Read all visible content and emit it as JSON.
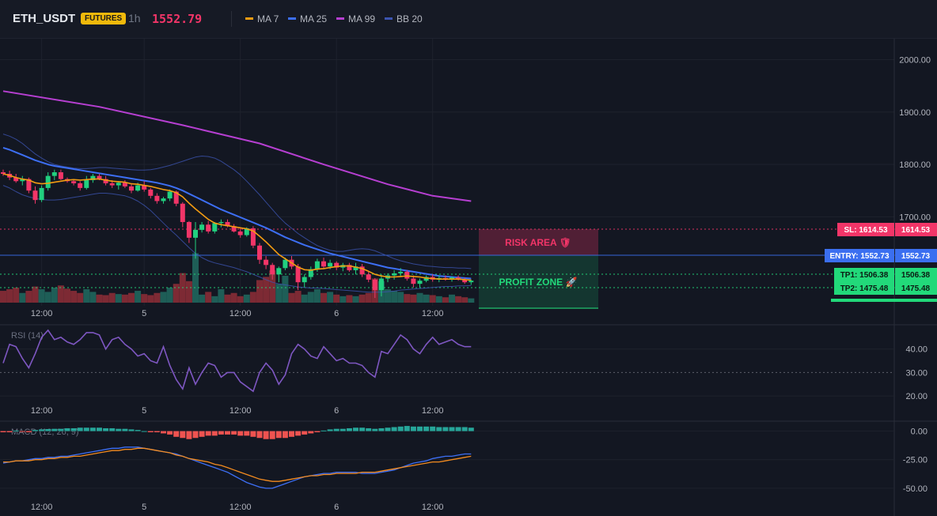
{
  "header": {
    "symbol": "ETH_USDT",
    "badge": "FUTURES",
    "timeframe": "1h",
    "last_price": "1552.79",
    "legend": [
      {
        "label": "MA 7",
        "color": "#f39c12"
      },
      {
        "label": "MA 25",
        "color": "#3d6ff5"
      },
      {
        "label": "MA 99",
        "color": "#b63fd1"
      },
      {
        "label": "BB 20",
        "color": "#3c54b0"
      }
    ]
  },
  "chart_data": [
    {
      "type": "candlestick",
      "panel": "price",
      "title": "ETH_USDT",
      "y_ticks": [
        "2000.00",
        "1900.00",
        "1800.00",
        "1700.00"
      ],
      "ylim": [
        1530,
        2040
      ],
      "x_ticks": [
        "12:00",
        "5",
        "12:00",
        "6",
        "12:00"
      ],
      "x_tick_index": [
        6,
        22,
        37,
        52,
        67
      ],
      "candles": [
        [
          1785,
          1790,
          1778,
          1782
        ],
        [
          1782,
          1788,
          1770,
          1775
        ],
        [
          1775,
          1782,
          1765,
          1768
        ],
        [
          1768,
          1778,
          1760,
          1772
        ],
        [
          1772,
          1775,
          1745,
          1750
        ],
        [
          1750,
          1758,
          1725,
          1732
        ],
        [
          1732,
          1760,
          1728,
          1755
        ],
        [
          1755,
          1785,
          1750,
          1778
        ],
        [
          1778,
          1790,
          1770,
          1785
        ],
        [
          1785,
          1790,
          1770,
          1772
        ],
        [
          1772,
          1775,
          1765,
          1768
        ],
        [
          1768,
          1772,
          1760,
          1764
        ],
        [
          1764,
          1768,
          1750,
          1755
        ],
        [
          1755,
          1778,
          1752,
          1770
        ],
        [
          1770,
          1782,
          1765,
          1778
        ],
        [
          1778,
          1782,
          1770,
          1772
        ],
        [
          1772,
          1778,
          1760,
          1764
        ],
        [
          1764,
          1770,
          1755,
          1760
        ],
        [
          1760,
          1768,
          1752,
          1765
        ],
        [
          1765,
          1770,
          1755,
          1758
        ],
        [
          1758,
          1762,
          1745,
          1750
        ],
        [
          1750,
          1765,
          1748,
          1760
        ],
        [
          1760,
          1768,
          1748,
          1752
        ],
        [
          1752,
          1755,
          1735,
          1740
        ],
        [
          1740,
          1745,
          1725,
          1730
        ],
        [
          1730,
          1738,
          1725,
          1735
        ],
        [
          1735,
          1752,
          1730,
          1748
        ],
        [
          1748,
          1750,
          1720,
          1725
        ],
        [
          1725,
          1728,
          1680,
          1690
        ],
        [
          1690,
          1692,
          1650,
          1660
        ],
        [
          1660,
          1690,
          1620,
          1675
        ],
        [
          1675,
          1690,
          1670,
          1685
        ],
        [
          1685,
          1692,
          1668,
          1672
        ],
        [
          1672,
          1690,
          1668,
          1688
        ],
        [
          1688,
          1695,
          1680,
          1690
        ],
        [
          1690,
          1695,
          1680,
          1682
        ],
        [
          1682,
          1686,
          1670,
          1672
        ],
        [
          1672,
          1678,
          1660,
          1665
        ],
        [
          1665,
          1680,
          1662,
          1678
        ],
        [
          1678,
          1682,
          1640,
          1645
        ],
        [
          1645,
          1650,
          1610,
          1618
        ],
        [
          1618,
          1625,
          1600,
          1608
        ],
        [
          1608,
          1612,
          1580,
          1590
        ],
        [
          1590,
          1605,
          1575,
          1602
        ],
        [
          1602,
          1622,
          1598,
          1618
        ],
        [
          1618,
          1625,
          1600,
          1605
        ],
        [
          1605,
          1610,
          1560,
          1575
        ],
        [
          1575,
          1590,
          1565,
          1585
        ],
        [
          1585,
          1605,
          1580,
          1600
        ],
        [
          1600,
          1620,
          1595,
          1615
        ],
        [
          1615,
          1622,
          1600,
          1605
        ],
        [
          1605,
          1618,
          1600,
          1612
        ],
        [
          1612,
          1615,
          1598,
          1603
        ],
        [
          1603,
          1612,
          1596,
          1608
        ],
        [
          1608,
          1612,
          1595,
          1598
        ],
        [
          1598,
          1612,
          1590,
          1605
        ],
        [
          1605,
          1610,
          1585,
          1590
        ],
        [
          1590,
          1595,
          1575,
          1580
        ],
        [
          1580,
          1583,
          1545,
          1560
        ],
        [
          1560,
          1590,
          1548,
          1582
        ],
        [
          1582,
          1592,
          1575,
          1588
        ],
        [
          1588,
          1598,
          1580,
          1592
        ],
        [
          1592,
          1602,
          1585,
          1595
        ],
        [
          1595,
          1598,
          1578,
          1582
        ],
        [
          1582,
          1588,
          1565,
          1572
        ],
        [
          1572,
          1582,
          1565,
          1578
        ],
        [
          1578,
          1588,
          1575,
          1585
        ],
        [
          1585,
          1590,
          1576,
          1580
        ],
        [
          1580,
          1588,
          1575,
          1583
        ],
        [
          1583,
          1588,
          1578,
          1581
        ],
        [
          1581,
          1586,
          1576,
          1584
        ],
        [
          1584,
          1588,
          1578,
          1580
        ],
        [
          1580,
          1584,
          1572,
          1575
        ],
        [
          1575,
          1580,
          1570,
          1578
        ]
      ],
      "volume": [
        22,
        25,
        28,
        18,
        22,
        30,
        25,
        20,
        28,
        32,
        26,
        22,
        18,
        25,
        20,
        15,
        14,
        18,
        16,
        15,
        18,
        22,
        16,
        14,
        18,
        20,
        28,
        35,
        55,
        40,
        92,
        15,
        20,
        12,
        25,
        15,
        18,
        12,
        15,
        20,
        42,
        48,
        60,
        35,
        50,
        18,
        22,
        15,
        20,
        25,
        18,
        20,
        15,
        12,
        14,
        12,
        15,
        18,
        45,
        40,
        25,
        22,
        20,
        16,
        15,
        18,
        15,
        14,
        12,
        10,
        15,
        12,
        10,
        8
      ],
      "ma7": [
        1782,
        1779,
        1775,
        1772,
        1770,
        1765,
        1763,
        1764,
        1766,
        1768,
        1770,
        1771,
        1770,
        1771,
        1772,
        1772,
        1770,
        1768,
        1767,
        1766,
        1763,
        1762,
        1760,
        1758,
        1755,
        1752,
        1750,
        1746,
        1738,
        1726,
        1715,
        1705,
        1695,
        1688,
        1685,
        1683,
        1681,
        1679,
        1677,
        1673,
        1663,
        1652,
        1640,
        1628,
        1620,
        1612,
        1604,
        1599,
        1598,
        1600,
        1601,
        1603,
        1605,
        1606,
        1606,
        1604,
        1601,
        1596,
        1590,
        1587,
        1585,
        1585,
        1586,
        1587,
        1586,
        1585,
        1583,
        1582,
        1581,
        1581,
        1581,
        1581,
        1580,
        1579
      ],
      "ma25": [
        1832,
        1828,
        1823,
        1818,
        1813,
        1808,
        1804,
        1800,
        1797,
        1795,
        1793,
        1791,
        1789,
        1787,
        1785,
        1783,
        1781,
        1779,
        1777,
        1775,
        1773,
        1771,
        1769,
        1767,
        1765,
        1762,
        1759,
        1755,
        1750,
        1744,
        1738,
        1732,
        1726,
        1720,
        1714,
        1709,
        1704,
        1699,
        1694,
        1689,
        1684,
        1679,
        1673,
        1667,
        1661,
        1656,
        1651,
        1646,
        1642,
        1638,
        1634,
        1630,
        1627,
        1624,
        1621,
        1618,
        1615,
        1612,
        1609,
        1606,
        1603,
        1601,
        1599,
        1597,
        1595,
        1593,
        1591,
        1589,
        1587,
        1586,
        1585,
        1584,
        1583,
        1582
      ],
      "ma99_points": [
        [
          0,
          1940
        ],
        [
          15,
          1910
        ],
        [
          28,
          1875
        ],
        [
          40,
          1840
        ],
        [
          50,
          1800
        ],
        [
          60,
          1762
        ],
        [
          67,
          1740
        ],
        [
          73,
          1730
        ]
      ],
      "bb_upper": [
        1858,
        1854,
        1848,
        1840,
        1830,
        1820,
        1812,
        1805,
        1800,
        1797,
        1795,
        1793,
        1792,
        1792,
        1793,
        1794,
        1794,
        1793,
        1792,
        1791,
        1790,
        1789,
        1789,
        1790,
        1792,
        1795,
        1798,
        1802,
        1806,
        1810,
        1814,
        1816,
        1815,
        1812,
        1806,
        1798,
        1790,
        1780,
        1768,
        1755,
        1742,
        1728,
        1714,
        1700,
        1688,
        1678,
        1668,
        1660,
        1652,
        1645,
        1640,
        1636,
        1634,
        1634,
        1636,
        1638,
        1639,
        1638,
        1635,
        1630,
        1625,
        1620,
        1616,
        1613,
        1610,
        1608,
        1606,
        1605,
        1604,
        1603,
        1603,
        1602,
        1602,
        1601
      ],
      "bb_lower": [
        1760,
        1755,
        1748,
        1742,
        1738,
        1735,
        1733,
        1732,
        1732,
        1733,
        1735,
        1737,
        1739,
        1741,
        1743,
        1745,
        1745,
        1744,
        1742,
        1740,
        1736,
        1730,
        1722,
        1712,
        1700,
        1688,
        1676,
        1665,
        1653,
        1641,
        1630,
        1622,
        1616,
        1612,
        1609,
        1606,
        1603,
        1599,
        1595,
        1590,
        1585,
        1580,
        1575,
        1572,
        1570,
        1568,
        1566,
        1565,
        1564,
        1564,
        1563,
        1562,
        1561,
        1560,
        1559,
        1558,
        1557,
        1556,
        1556,
        1556,
        1557,
        1558,
        1560,
        1561,
        1562,
        1563,
        1564,
        1565,
        1566,
        1567,
        1567,
        1568,
        1568,
        1569
      ],
      "levels": [
        {
          "name": "SL",
          "label": "SL: 1614.53",
          "axis": "1614.53",
          "value": 1614.53,
          "color": "#f23568"
        },
        {
          "name": "ENTRY",
          "label": "ENTRY: 1552.73",
          "axis": "1552.73",
          "value": 1552.73,
          "color": "#3b6ff0"
        },
        {
          "name": "TP1",
          "label": "TP1: 1506.38",
          "axis": "1506.38",
          "value": 1506.38,
          "color": "#22d97a"
        },
        {
          "name": "TP2",
          "label": "TP2: 1475.48",
          "axis": "1475.48",
          "value": 1475.48,
          "color": "#22d97a"
        }
      ],
      "zones": [
        {
          "label": "RISK AREA 🛡",
          "color": "#f23568"
        },
        {
          "label": "PROFIT ZONE 🚀",
          "color": "#22d97a"
        }
      ]
    },
    {
      "type": "line",
      "panel": "rsi",
      "title": "RSI (14)",
      "y_ticks": [
        "40.00",
        "30.00",
        "20.00"
      ],
      "ylim": [
        17,
        50
      ],
      "x_ticks": [
        "12:00",
        "5",
        "12:00",
        "6",
        "12:00"
      ],
      "reference_line": 30,
      "values": [
        34,
        42,
        41,
        36,
        32,
        38,
        45,
        48,
        44,
        45,
        43,
        42,
        44,
        47,
        47,
        46,
        40,
        44,
        45,
        42,
        40,
        37,
        38,
        35,
        34,
        41,
        33,
        27,
        23,
        32,
        25,
        30,
        34,
        33,
        28,
        30,
        30,
        26,
        24,
        22,
        30,
        34,
        31,
        25,
        29,
        38,
        42,
        40,
        37,
        36,
        41,
        38,
        35,
        36,
        34,
        34,
        33,
        30,
        28,
        39,
        38,
        42,
        46,
        44,
        40,
        38,
        42,
        45,
        42,
        43,
        44,
        42,
        41,
        41
      ],
      "color": "#7e57c2"
    },
    {
      "type": "bar+line",
      "panel": "macd",
      "title": "MACD (12, 26, 9)",
      "y_ticks": [
        "0.00",
        "-25.00",
        "-50.00"
      ],
      "ylim": [
        -57,
        8
      ],
      "x_ticks": [
        "12:00",
        "5",
        "12:00",
        "6",
        "12:00"
      ],
      "histogram": [
        -1,
        -1,
        0.5,
        -0.5,
        -1,
        1,
        1.5,
        1.8,
        2,
        2,
        2.5,
        2.5,
        3,
        3,
        3,
        3,
        2.5,
        2.5,
        2,
        2,
        1.5,
        1,
        0,
        -1,
        -1,
        -2,
        -3,
        -5,
        -6,
        -7,
        -6,
        -5,
        -4,
        -4,
        -3,
        -3,
        -3,
        -4,
        -4,
        -5,
        -6,
        -7,
        -7,
        -6,
        -6,
        -5,
        -4,
        -3,
        -2,
        -1,
        0.5,
        1.5,
        2,
        2,
        2.5,
        3,
        3,
        2.5,
        2,
        2.5,
        3,
        3.5,
        4,
        4.5,
        4,
        4,
        4,
        4,
        3.5,
        3.5,
        3.5,
        3.5,
        3.5,
        3
      ],
      "macd": [
        -28,
        -27,
        -26,
        -26,
        -25,
        -24,
        -24,
        -23,
        -23,
        -22,
        -22,
        -21,
        -20,
        -19,
        -18,
        -17,
        -16,
        -15,
        -15,
        -14,
        -14,
        -14,
        -15,
        -16,
        -17,
        -18,
        -19,
        -20,
        -22,
        -24,
        -26,
        -28,
        -30,
        -32,
        -34,
        -36,
        -39,
        -42,
        -45,
        -47,
        -49,
        -50,
        -50,
        -48,
        -46,
        -44,
        -42,
        -40,
        -39,
        -38,
        -37,
        -37,
        -36,
        -36,
        -36,
        -36,
        -37,
        -37,
        -37,
        -36,
        -35,
        -34,
        -32,
        -30,
        -28,
        -27,
        -26,
        -24,
        -23,
        -22,
        -22,
        -21,
        -20,
        -20
      ],
      "signal": [
        -27,
        -27,
        -26,
        -26,
        -26,
        -25,
        -25,
        -24,
        -24,
        -23,
        -23,
        -22,
        -22,
        -21,
        -20,
        -19,
        -18,
        -17,
        -17,
        -16,
        -16,
        -15,
        -15,
        -16,
        -17,
        -18,
        -19,
        -21,
        -22,
        -24,
        -25,
        -26,
        -27,
        -29,
        -30,
        -32,
        -34,
        -36,
        -38,
        -40,
        -42,
        -43,
        -44,
        -44,
        -43,
        -42,
        -41,
        -40,
        -39,
        -39,
        -38,
        -38,
        -37,
        -37,
        -37,
        -37,
        -36,
        -36,
        -36,
        -35,
        -34,
        -33,
        -32,
        -31,
        -30,
        -29,
        -28,
        -27,
        -27,
        -26,
        -25,
        -24,
        -23,
        -22
      ],
      "macd_color": "#3d6ff5",
      "signal_color": "#f38b1f",
      "hist_up": "#26a69a",
      "hist_down": "#ef5350"
    }
  ]
}
